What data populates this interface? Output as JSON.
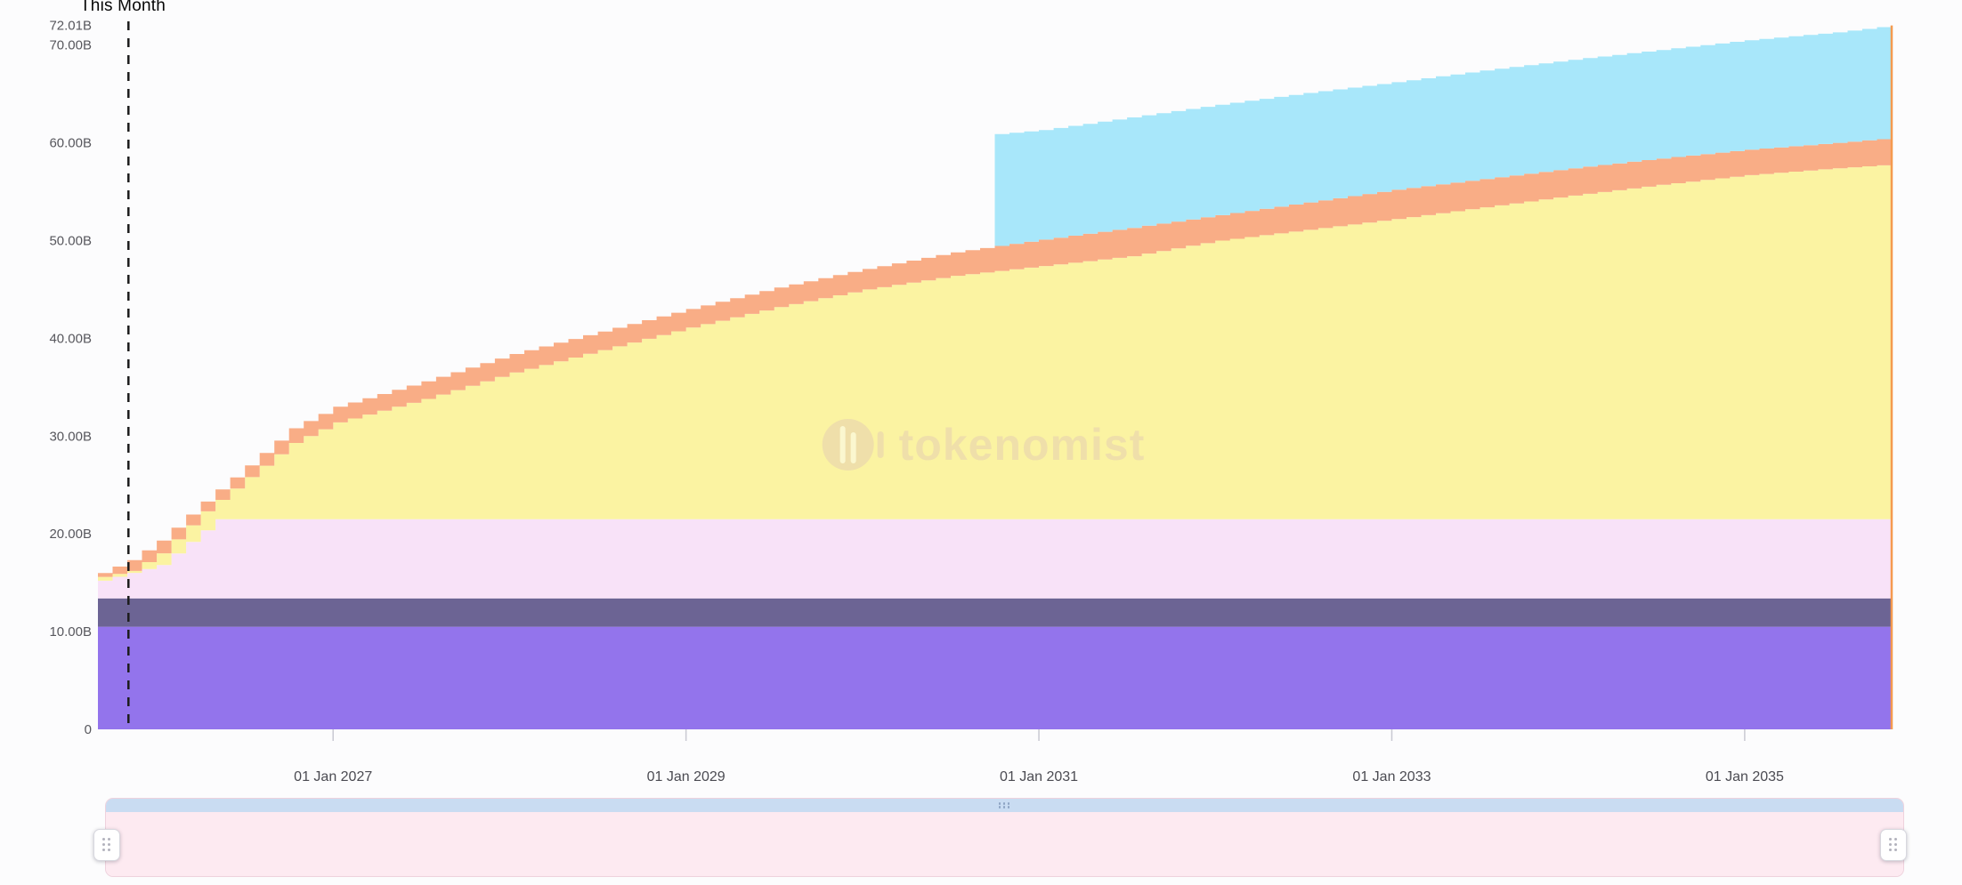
{
  "annotation": {
    "this_month_label": "This Month",
    "this_month_t": 2025.84
  },
  "watermark": {
    "text": "tokenomist",
    "color": "#e4cdb2"
  },
  "chart_data": {
    "type": "area",
    "stacked": true,
    "step": "monthly",
    "title": "",
    "xlabel": "",
    "ylabel": "",
    "x_start": 2025.667,
    "x_end": 2035.833,
    "ylim": [
      0,
      72.01
    ],
    "y_unit": "B",
    "grid": false,
    "legend": "none",
    "edge_line_color": "#f59a4f",
    "x_ticks": [
      {
        "t": 2027,
        "label": "01 Jan 2027"
      },
      {
        "t": 2029,
        "label": "01 Jan 2029"
      },
      {
        "t": 2031,
        "label": "01 Jan 2031"
      },
      {
        "t": 2033,
        "label": "01 Jan 2033"
      },
      {
        "t": 2035,
        "label": "01 Jan 2035"
      }
    ],
    "y_ticks": [
      {
        "v": 0,
        "label": "0"
      },
      {
        "v": 10,
        "label": "10.00B"
      },
      {
        "v": 20,
        "label": "20.00B"
      },
      {
        "v": 30,
        "label": "30.00B"
      },
      {
        "v": 40,
        "label": "40.00B"
      },
      {
        "v": 50,
        "label": "50.00B"
      },
      {
        "v": 60,
        "label": "60.00B"
      },
      {
        "v": 70,
        "label": "70.00B"
      },
      {
        "v": 72.01,
        "label": "72.01B"
      }
    ],
    "series_note": "points are [decimal_year, cumulative_top_in_billions]; bands stack bottom-to-top",
    "series": [
      {
        "name": "purple",
        "color": "#9374ec",
        "points": [
          [
            2025.667,
            10.5
          ],
          [
            2035.833,
            10.5
          ]
        ]
      },
      {
        "name": "dark-purple",
        "color": "#6c6494",
        "points": [
          [
            2025.667,
            13.4
          ],
          [
            2035.833,
            13.4
          ]
        ]
      },
      {
        "name": "light-pink",
        "color": "#f8e2f8",
        "points": [
          [
            2025.667,
            15.2
          ],
          [
            2026.0,
            16.8
          ],
          [
            2026.33,
            21.5
          ],
          [
            2035.833,
            21.5
          ]
        ]
      },
      {
        "name": "yellow",
        "color": "#fbf3a2",
        "points": [
          [
            2025.667,
            15.6
          ],
          [
            2025.833,
            16.2
          ],
          [
            2026.0,
            18.0
          ],
          [
            2026.25,
            22.3
          ],
          [
            2026.5,
            25.8
          ],
          [
            2026.75,
            29.3
          ],
          [
            2027.0,
            31.4
          ],
          [
            2027.5,
            33.8
          ],
          [
            2028.0,
            36.5
          ],
          [
            2028.5,
            38.8
          ],
          [
            2029.0,
            41.1
          ],
          [
            2029.5,
            43.2
          ],
          [
            2030.0,
            45.0
          ],
          [
            2030.5,
            46.4
          ],
          [
            2031.0,
            47.4
          ],
          [
            2031.5,
            48.4
          ],
          [
            2032.0,
            50.0
          ],
          [
            2032.5,
            51.1
          ],
          [
            2033.0,
            52.2
          ],
          [
            2033.5,
            53.4
          ],
          [
            2034.0,
            54.6
          ],
          [
            2034.5,
            55.7
          ],
          [
            2035.0,
            56.7
          ],
          [
            2035.5,
            57.4
          ],
          [
            2035.833,
            57.8
          ]
        ]
      },
      {
        "name": "orange",
        "color": "#f9ad86",
        "points": [
          [
            2025.667,
            16.0
          ],
          [
            2025.833,
            17.3
          ],
          [
            2026.0,
            19.3
          ],
          [
            2026.25,
            23.3
          ],
          [
            2026.5,
            27.0
          ],
          [
            2026.75,
            30.8
          ],
          [
            2027.0,
            33.0
          ],
          [
            2027.5,
            35.6
          ],
          [
            2028.0,
            38.4
          ],
          [
            2028.5,
            40.7
          ],
          [
            2029.0,
            43.0
          ],
          [
            2029.5,
            45.2
          ],
          [
            2030.0,
            47.1
          ],
          [
            2030.5,
            48.8
          ],
          [
            2031.0,
            50.1
          ],
          [
            2031.5,
            51.3
          ],
          [
            2032.0,
            52.6
          ],
          [
            2032.5,
            53.9
          ],
          [
            2033.0,
            55.2
          ],
          [
            2033.5,
            56.3
          ],
          [
            2034.0,
            57.4
          ],
          [
            2034.5,
            58.4
          ],
          [
            2035.0,
            59.3
          ],
          [
            2035.5,
            60.0
          ],
          [
            2035.833,
            60.5
          ]
        ]
      },
      {
        "name": "light-blue",
        "color": "#a8e7fa",
        "start": 2030.75,
        "points": [
          [
            2030.75,
            60.9
          ],
          [
            2031.0,
            61.3
          ],
          [
            2031.5,
            62.6
          ],
          [
            2032.0,
            63.9
          ],
          [
            2032.5,
            65.1
          ],
          [
            2033.0,
            66.2
          ],
          [
            2033.5,
            67.4
          ],
          [
            2034.0,
            68.5
          ],
          [
            2034.5,
            69.5
          ],
          [
            2035.0,
            70.5
          ],
          [
            2035.5,
            71.3
          ],
          [
            2035.833,
            72.01
          ]
        ]
      }
    ]
  },
  "navigator": {
    "range_bar_color": "#c9dcf2",
    "track_color": "#fdeaf1",
    "track_border_color": "#eed2dd"
  }
}
